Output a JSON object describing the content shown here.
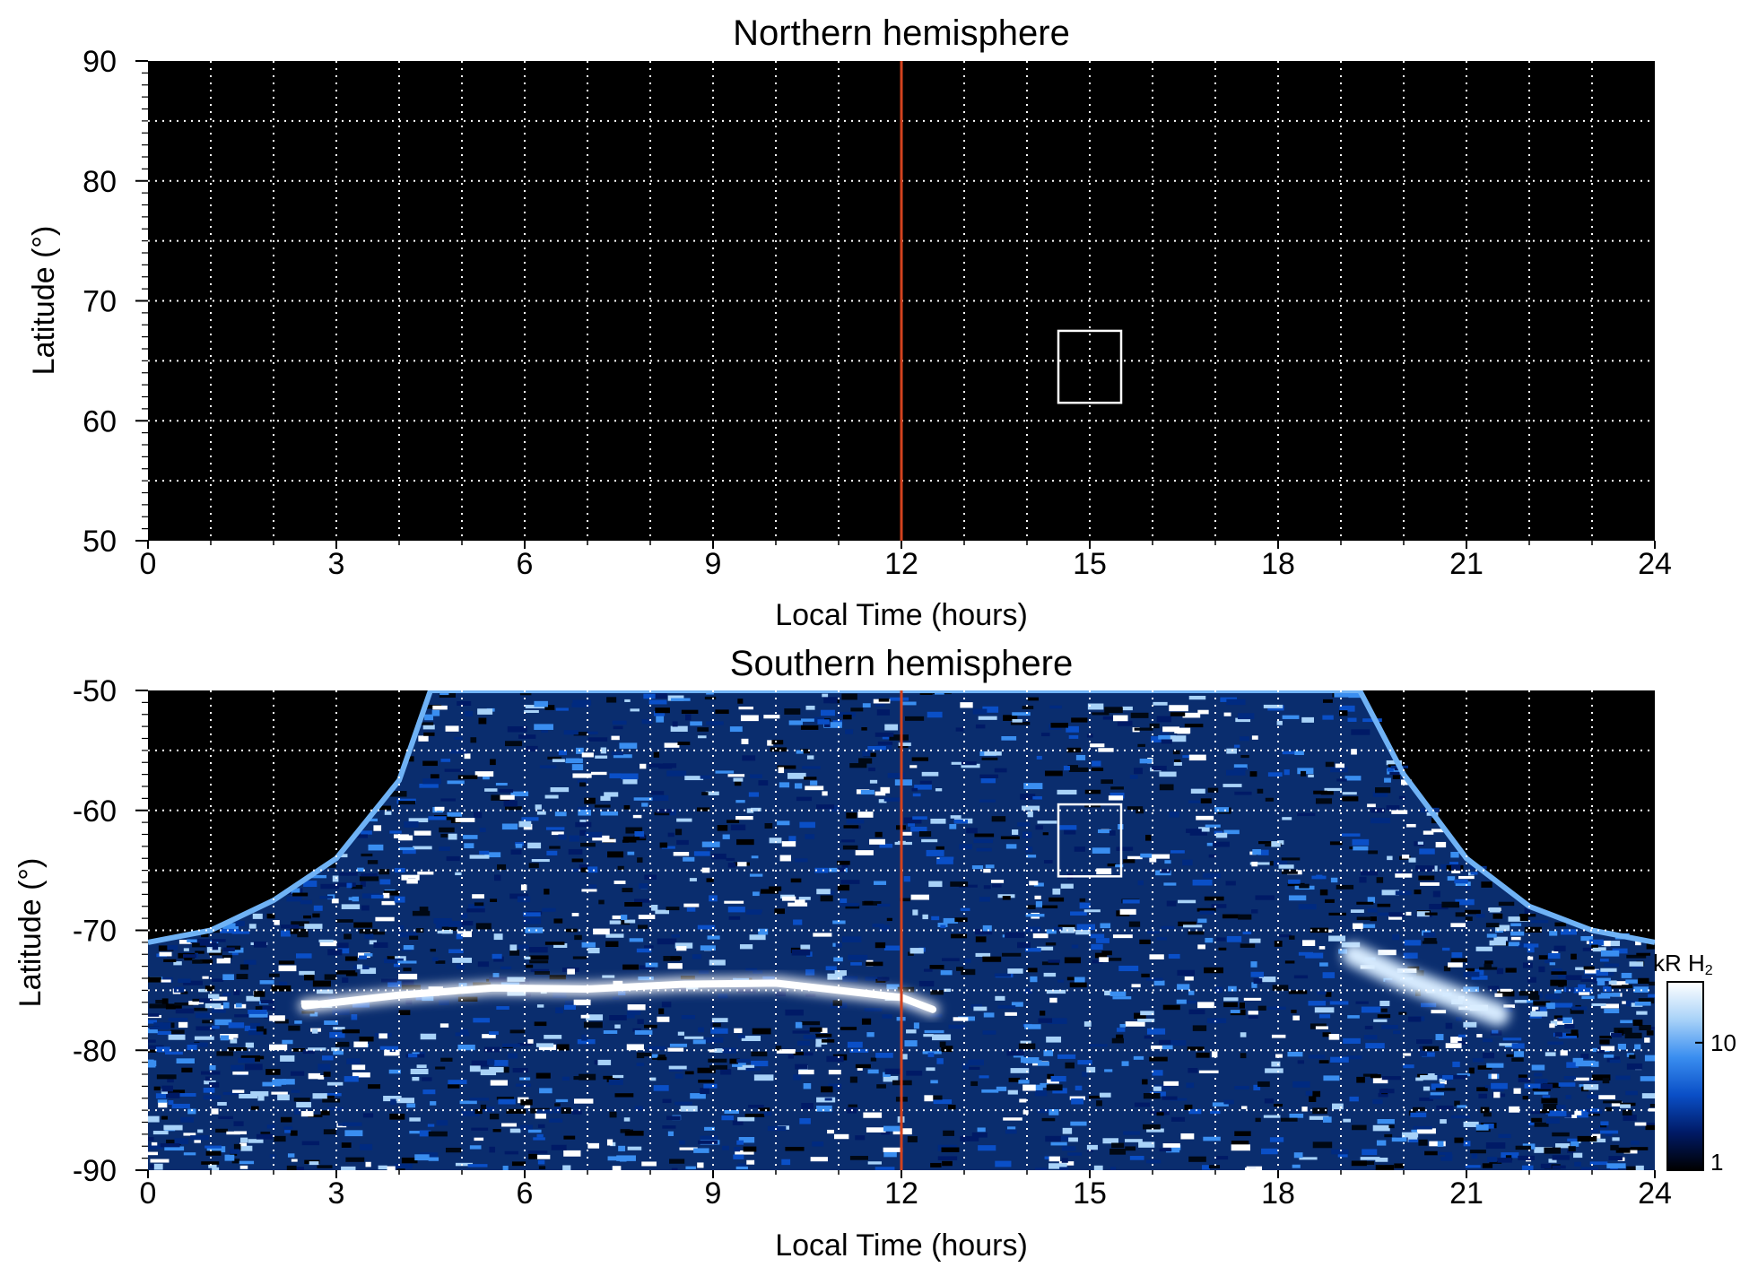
{
  "chart_data": [
    {
      "type": "heatmap",
      "title": "Northern hemisphere",
      "xlabel": "Local Time (hours)",
      "ylabel": "Latitude (°)",
      "xlim": [
        0,
        24
      ],
      "ylim": [
        50,
        90
      ],
      "x_ticks": [
        "0",
        "3",
        "6",
        "9",
        "12",
        "15",
        "18",
        "21",
        "24"
      ],
      "y_ticks": [
        "50",
        "60",
        "70",
        "80",
        "90"
      ],
      "grid": true,
      "background": "#000000",
      "emission": "none",
      "noon_line": {
        "x": 12,
        "color": "#d2421e"
      },
      "box": {
        "x": [
          14.5,
          15.5
        ],
        "y": [
          61.5,
          67.5
        ]
      }
    },
    {
      "type": "heatmap",
      "title": "Southern hemisphere",
      "xlabel": "Local Time (hours)",
      "ylabel": "Latitude (°)",
      "xlim": [
        0,
        24
      ],
      "ylim": [
        -90,
        -50
      ],
      "x_ticks": [
        "0",
        "3",
        "6",
        "9",
        "12",
        "15",
        "18",
        "21",
        "24"
      ],
      "y_ticks": [
        "-50",
        "-60",
        "-70",
        "-80",
        "-90"
      ],
      "grid": true,
      "background": "#000000",
      "coverage_boundary": [
        [
          0,
          -71
        ],
        [
          1,
          -70
        ],
        [
          2,
          -67.5
        ],
        [
          3,
          -64
        ],
        [
          4,
          -57.5
        ],
        [
          4.5,
          -50
        ],
        [
          19.3,
          -50
        ],
        [
          20,
          -57
        ],
        [
          21,
          -64
        ],
        [
          22,
          -68
        ],
        [
          23,
          -70
        ],
        [
          24,
          -71
        ]
      ],
      "auroral_oval": [
        [
          2.5,
          -76.3
        ],
        [
          4,
          -75.4
        ],
        [
          5.5,
          -74.8
        ],
        [
          7,
          -74.9
        ],
        [
          8.5,
          -74.5
        ],
        [
          10,
          -74.4
        ],
        [
          11,
          -75.0
        ],
        [
          12,
          -75.6
        ],
        [
          12.5,
          -76.6
        ]
      ],
      "dusk_arc": [
        [
          19.2,
          -72.0
        ],
        [
          20,
          -74.0
        ],
        [
          21,
          -76.0
        ],
        [
          21.5,
          -77.0
        ]
      ],
      "noon_line": {
        "x": 12,
        "color": "#d2421e"
      },
      "box": {
        "x": [
          14.5,
          15.5
        ],
        "y": [
          -65.5,
          -59.5
        ]
      }
    }
  ],
  "colorbar": {
    "label_main": "kR H",
    "label_sub": "2",
    "ticks": [
      "1",
      "10"
    ],
    "tick_values": [
      1,
      10
    ],
    "range": [
      1,
      30
    ],
    "scale": "log",
    "colors": [
      "#000000",
      "#001a66",
      "#0a4fc7",
      "#3a8ef0",
      "#a8d2f8",
      "#ffffff"
    ]
  }
}
